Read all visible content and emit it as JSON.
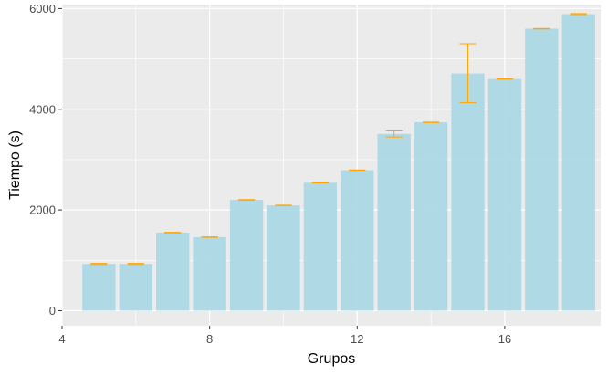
{
  "chart_data": {
    "type": "bar",
    "title": "",
    "xlabel": "Grupos",
    "ylabel": "Tiempo (s)",
    "x": [
      5,
      6,
      7,
      8,
      9,
      10,
      11,
      12,
      13,
      14,
      15,
      16,
      17,
      18
    ],
    "values": [
      930,
      930,
      1550,
      1460,
      2200,
      2090,
      2540,
      2790,
      3510,
      3740,
      4710,
      4600,
      5600,
      5890
    ],
    "error_low": [
      920,
      920,
      1545,
      1455,
      2195,
      2085,
      2535,
      2785,
      3450,
      3735,
      4130,
      4595,
      5595,
      5880
    ],
    "error_high": [
      940,
      940,
      1555,
      1465,
      2205,
      2095,
      2545,
      2795,
      3570,
      3745,
      5300,
      4605,
      5605,
      5900
    ],
    "xlim": [
      4,
      18.6
    ],
    "ylim": [
      0,
      6000
    ],
    "x_ticks": [
      4,
      8,
      12,
      16
    ],
    "y_ticks": [
      0,
      2000,
      4000,
      6000
    ],
    "x_tick_labels": [
      "4",
      "8",
      "12",
      "16"
    ],
    "y_tick_labels": [
      "0",
      "2000",
      "4000",
      "6000"
    ],
    "grid": true,
    "bar_color": "#add8e6",
    "errorbar_color": "#ffa500",
    "panel_color": "#ebebeb"
  }
}
